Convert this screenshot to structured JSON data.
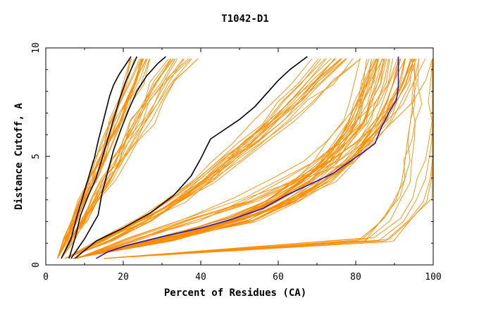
{
  "chart_data": {
    "type": "line",
    "title": "T1042-D1",
    "xlabel": "Percent of Residues (CA)",
    "ylabel": "Distance Cutoff, A",
    "xlim": [
      0,
      100
    ],
    "ylim": [
      0,
      10
    ],
    "x_ticks": [
      0,
      20,
      40,
      60,
      80,
      100
    ],
    "y_ticks": [
      0,
      5,
      10
    ],
    "grid": false,
    "colors": {
      "bundle": "#ff8c00",
      "highlight_dark": "#000000",
      "highlight_blue": "#1a1acc",
      "frame": "#000000"
    },
    "series": [
      {
        "role": "bundle",
        "count": 16,
        "x": [
          3.0,
          5.2,
          7.4,
          9.6,
          11.8,
          14.0,
          16.2,
          18.4,
          20.6,
          22.8,
          25.0
        ],
        "y": [
          0.3,
          1.2,
          2.1,
          3.0,
          3.9,
          4.8,
          5.7,
          6.6,
          7.5,
          8.4,
          9.5
        ]
      },
      {
        "role": "bundle",
        "count": 14,
        "x": [
          4.0,
          7.0,
          10.0,
          13.0,
          16.0,
          19.0,
          22.0,
          25.0,
          28.0,
          31.0,
          36.0
        ],
        "y": [
          0.3,
          1.2,
          2.1,
          3.0,
          3.9,
          4.8,
          5.7,
          6.6,
          7.5,
          8.4,
          9.5
        ]
      },
      {
        "role": "bundle",
        "count": 18,
        "x": [
          5.0,
          16.0,
          26.0,
          34.0,
          41.0,
          47.0,
          53.0,
          59.0,
          64.0,
          69.0,
          75.0
        ],
        "y": [
          0.3,
          1.2,
          2.1,
          3.0,
          3.9,
          4.8,
          5.7,
          6.6,
          7.5,
          8.4,
          9.5
        ]
      },
      {
        "role": "bundle",
        "count": 34,
        "x": [
          7.0,
          32.0,
          51.0,
          62.0,
          70.0,
          76.0,
          80.0,
          84.0,
          86.0,
          88.0,
          90.0
        ],
        "y": [
          0.3,
          1.2,
          2.1,
          3.0,
          3.9,
          4.8,
          5.7,
          6.6,
          7.5,
          8.4,
          9.5
        ]
      },
      {
        "role": "bundle",
        "count": 8,
        "x": [
          8.0,
          22.0,
          38.0,
          52.0,
          63.0,
          72.0,
          79.0,
          84.0,
          88.0,
          91.0,
          93.0
        ],
        "y": [
          0.3,
          1.2,
          2.1,
          3.0,
          3.9,
          4.8,
          5.7,
          6.6,
          7.5,
          8.4,
          9.5
        ]
      },
      {
        "role": "bundle",
        "count": 9,
        "x": [
          15.0,
          85.0,
          91.0,
          94.5,
          96.5,
          97.5,
          98.2,
          98.8,
          99.3,
          99.6,
          99.8
        ],
        "y": [
          0.3,
          1.2,
          2.1,
          3.0,
          3.9,
          4.8,
          5.7,
          6.6,
          7.5,
          8.4,
          9.5
        ]
      },
      {
        "role": "highlight_dark",
        "x": [
          4,
          6.5,
          8,
          9.5,
          11,
          12.5,
          13.5,
          14.5,
          15.5,
          16.5,
          17.5,
          19,
          20.5,
          22
        ],
        "y": [
          0.3,
          1.2,
          2.2,
          3.1,
          4.0,
          4.9,
          5.7,
          6.4,
          7.1,
          7.8,
          8.3,
          8.8,
          9.2,
          9.6
        ]
      },
      {
        "role": "highlight_dark",
        "x": [
          6,
          7.5,
          9,
          11,
          13,
          14.5,
          16,
          17.5,
          19,
          20.5,
          22,
          23.5
        ],
        "y": [
          0.3,
          1.2,
          2.3,
          3.2,
          4.0,
          4.9,
          5.8,
          6.7,
          7.6,
          8.4,
          9.0,
          9.6
        ]
      },
      {
        "role": "highlight_dark",
        "x": [
          6.5,
          10,
          13.5,
          14.5,
          16,
          17.5,
          19.5,
          21.5,
          23.5,
          26,
          29,
          31
        ],
        "y": [
          0.3,
          1.2,
          2.3,
          3.3,
          4.3,
          5.3,
          6.3,
          7.2,
          8.0,
          8.7,
          9.3,
          9.6
        ]
      },
      {
        "role": "highlight_dark",
        "x": [
          7.5,
          13,
          20,
          27,
          33,
          37.5,
          40,
          42.5,
          45,
          50,
          54,
          57,
          60,
          63,
          66,
          67.5
        ],
        "y": [
          0.3,
          1.1,
          1.7,
          2.4,
          3.2,
          4.1,
          4.9,
          5.8,
          6.1,
          6.7,
          7.3,
          7.9,
          8.5,
          9.0,
          9.4,
          9.6
        ]
      },
      {
        "role": "highlight_blue",
        "x": [
          13,
          16,
          21,
          30,
          40,
          48,
          56,
          62,
          68,
          74,
          78,
          82,
          85,
          86.5,
          88.5,
          90.5,
          91,
          91,
          91
        ],
        "y": [
          0.3,
          0.6,
          0.9,
          1.3,
          1.7,
          2.1,
          2.6,
          3.2,
          3.7,
          4.2,
          4.7,
          5.2,
          5.6,
          6.3,
          7.0,
          7.6,
          8.2,
          9.0,
          9.6
        ]
      }
    ]
  }
}
